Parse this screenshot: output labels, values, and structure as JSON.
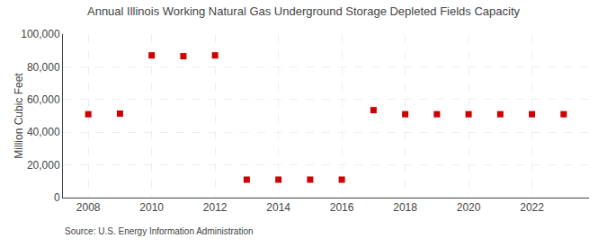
{
  "chart_data": {
    "type": "scatter",
    "title": "Annual Illinois Working Natural Gas Underground Storage Depleted Fields Capacity",
    "ylabel": "Million Cubic Feet",
    "annotations": [
      "Source: U.S. Energy Information Administration"
    ],
    "x": [
      2008,
      2009,
      2010,
      2011,
      2012,
      2013,
      2014,
      2015,
      2016,
      2017,
      2018,
      2019,
      2020,
      2021,
      2022,
      2023
    ],
    "values": [
      51000,
      51400,
      87000,
      86500,
      87000,
      11000,
      11000,
      11000,
      11000,
      53500,
      51000,
      51000,
      51000,
      51000,
      51000,
      51000
    ],
    "color": "#cc0000",
    "marker": "square",
    "xlim": [
      2007.2,
      2023.8
    ],
    "xticks": [
      2008,
      2010,
      2012,
      2014,
      2016,
      2018,
      2020,
      2022
    ],
    "ylim": [
      0,
      100000
    ],
    "yticks": [
      0,
      {
        "value": 20000,
        "label": "20,000"
      },
      {
        "value": 40000,
        "label": "40,000"
      },
      {
        "value": 60000,
        "label": "60,000"
      },
      {
        "value": 80000,
        "label": "80,000"
      },
      {
        "value": 100000,
        "label": "100,000"
      }
    ],
    "grid": true
  }
}
